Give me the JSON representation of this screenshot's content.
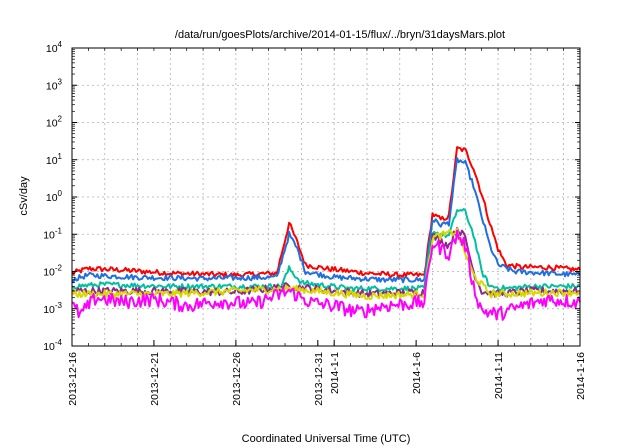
{
  "chart_data": {
    "type": "line",
    "title": "/data/run/goesPlots/archive/2014-01-15/flux/../bryn/31daysMars.plot",
    "xlabel": "Coordinated Universal Time (UTC)",
    "ylabel": "cSv/day",
    "y_scale": "log",
    "ylim": [
      0.0001,
      10000
    ],
    "y_ticks": [
      {
        "value": 0.0001,
        "base": "10",
        "exp": "-4"
      },
      {
        "value": 0.001,
        "base": "10",
        "exp": "-3"
      },
      {
        "value": 0.01,
        "base": "10",
        "exp": "-2"
      },
      {
        "value": 0.1,
        "base": "10",
        "exp": "-1"
      },
      {
        "value": 1,
        "base": "10",
        "exp": "0"
      },
      {
        "value": 10,
        "base": "10",
        "exp": "1"
      },
      {
        "value": 100,
        "base": "10",
        "exp": "2"
      },
      {
        "value": 1000,
        "base": "10",
        "exp": "3"
      },
      {
        "value": 10000,
        "base": "10",
        "exp": "4"
      }
    ],
    "xlim": [
      "2013-12-16",
      "2014-01-16"
    ],
    "x_ticks": [
      {
        "date": "2013-12-16",
        "label": "2013-12-16"
      },
      {
        "date": "2013-12-21",
        "label": "2013-12-21"
      },
      {
        "date": "2013-12-26",
        "label": "2013-12-26"
      },
      {
        "date": "2013-12-31",
        "label": "2013-12-31"
      },
      {
        "date": "2014-01-01",
        "label": "2014-1-1"
      },
      {
        "date": "2014-01-06",
        "label": "2014-1-6"
      },
      {
        "date": "2014-01-11",
        "label": "2014-1-11"
      },
      {
        "date": "2014-01-16",
        "label": "2014-1-16"
      }
    ],
    "grid": true,
    "legend": "none",
    "series": [
      {
        "color": "#ff0000",
        "points": [
          [
            "2013-12-16T00:00",
            0.009
          ],
          [
            "2013-12-17T00:00",
            0.012
          ],
          [
            "2013-12-19T00:00",
            0.011
          ],
          [
            "2013-12-22T00:00",
            0.009
          ],
          [
            "2013-12-26T00:00",
            0.008
          ],
          [
            "2013-12-28T12:00",
            0.009
          ],
          [
            "2013-12-29T06:00",
            0.2
          ],
          [
            "2013-12-29T18:00",
            0.06
          ],
          [
            "2013-12-30T06:00",
            0.015
          ],
          [
            "2013-12-31T12:00",
            0.012
          ],
          [
            "2014-01-03T00:00",
            0.009
          ],
          [
            "2014-01-05T00:00",
            0.008
          ],
          [
            "2014-01-06T12:00",
            0.008
          ],
          [
            "2014-01-07T00:00",
            0.35
          ],
          [
            "2014-01-07T12:00",
            0.25
          ],
          [
            "2014-01-08T00:00",
            0.3
          ],
          [
            "2014-01-08T12:00",
            20
          ],
          [
            "2014-01-09T00:00",
            18
          ],
          [
            "2014-01-09T12:00",
            6
          ],
          [
            "2014-01-10T00:00",
            1.2
          ],
          [
            "2014-01-10T12:00",
            0.2
          ],
          [
            "2014-01-11T00:00",
            0.04
          ],
          [
            "2014-01-11T12:00",
            0.015
          ],
          [
            "2014-01-12T12:00",
            0.013
          ],
          [
            "2014-01-14T00:00",
            0.013
          ],
          [
            "2014-01-16T00:00",
            0.011
          ]
        ]
      },
      {
        "color": "#1f6fe0",
        "points": [
          [
            "2013-12-16T00:00",
            0.006
          ],
          [
            "2013-12-17T00:00",
            0.008
          ],
          [
            "2013-12-20T00:00",
            0.007
          ],
          [
            "2013-12-24T00:00",
            0.0065
          ],
          [
            "2013-12-28T12:00",
            0.007
          ],
          [
            "2013-12-29T06:00",
            0.1
          ],
          [
            "2013-12-29T18:00",
            0.04
          ],
          [
            "2013-12-30T06:00",
            0.01
          ],
          [
            "2014-01-01T00:00",
            0.007
          ],
          [
            "2014-01-04T00:00",
            0.006
          ],
          [
            "2014-01-06T12:00",
            0.006
          ],
          [
            "2014-01-07T00:00",
            0.25
          ],
          [
            "2014-01-07T12:00",
            0.18
          ],
          [
            "2014-01-08T00:00",
            0.2
          ],
          [
            "2014-01-08T12:00",
            10
          ],
          [
            "2014-01-09T00:00",
            8
          ],
          [
            "2014-01-09T12:00",
            2
          ],
          [
            "2014-01-10T00:00",
            0.3
          ],
          [
            "2014-01-10T12:00",
            0.05
          ],
          [
            "2014-01-11T00:00",
            0.015
          ],
          [
            "2014-01-12T00:00",
            0.01
          ],
          [
            "2014-01-14T00:00",
            0.009
          ],
          [
            "2014-01-16T00:00",
            0.008
          ]
        ]
      },
      {
        "color": "#00c0a0",
        "points": [
          [
            "2013-12-16T00:00",
            0.004
          ],
          [
            "2013-12-18T00:00",
            0.0045
          ],
          [
            "2013-12-22T00:00",
            0.004
          ],
          [
            "2013-12-27T00:00",
            0.004
          ],
          [
            "2013-12-28T18:00",
            0.004
          ],
          [
            "2013-12-29T06:00",
            0.012
          ],
          [
            "2013-12-30T00:00",
            0.005
          ],
          [
            "2014-01-02T00:00",
            0.0035
          ],
          [
            "2014-01-06T12:00",
            0.0035
          ],
          [
            "2014-01-07T00:00",
            0.12
          ],
          [
            "2014-01-07T12:00",
            0.1
          ],
          [
            "2014-01-08T00:00",
            0.09
          ],
          [
            "2014-01-08T12:00",
            0.45
          ],
          [
            "2014-01-09T00:00",
            0.4
          ],
          [
            "2014-01-09T12:00",
            0.1
          ],
          [
            "2014-01-10T00:00",
            0.01
          ],
          [
            "2014-01-10T12:00",
            0.004
          ],
          [
            "2014-01-11T12:00",
            0.0035
          ],
          [
            "2014-01-13T00:00",
            0.004
          ],
          [
            "2014-01-16T00:00",
            0.004
          ]
        ]
      },
      {
        "color": "#8a2a8a",
        "points": [
          [
            "2013-12-16T00:00",
            0.003
          ],
          [
            "2013-12-20T00:00",
            0.003
          ],
          [
            "2013-12-26T00:00",
            0.0028
          ],
          [
            "2013-12-29T06:00",
            0.004
          ],
          [
            "2014-01-03T00:00",
            0.0025
          ],
          [
            "2014-01-06T12:00",
            0.0028
          ],
          [
            "2014-01-07T00:00",
            0.09
          ],
          [
            "2014-01-08T00:00",
            0.05
          ],
          [
            "2014-01-08T12:00",
            0.15
          ],
          [
            "2014-01-09T00:00",
            0.08
          ],
          [
            "2014-01-09T12:00",
            0.01
          ],
          [
            "2014-01-10T00:00",
            0.003
          ],
          [
            "2014-01-11T00:00",
            0.0025
          ],
          [
            "2014-01-13T00:00",
            0.003
          ],
          [
            "2014-01-16T00:00",
            0.003
          ]
        ]
      },
      {
        "color": "#d8d800",
        "points": [
          [
            "2013-12-16T00:00",
            0.0025
          ],
          [
            "2013-12-22T00:00",
            0.0025
          ],
          [
            "2013-12-29T06:00",
            0.0035
          ],
          [
            "2014-01-03T00:00",
            0.0022
          ],
          [
            "2014-01-06T12:00",
            0.0025
          ],
          [
            "2014-01-07T00:00",
            0.08
          ],
          [
            "2014-01-08T12:00",
            0.12
          ],
          [
            "2014-01-09T12:00",
            0.008
          ],
          [
            "2014-01-10T12:00",
            0.0025
          ],
          [
            "2014-01-16T00:00",
            0.0028
          ]
        ]
      },
      {
        "color": "#ff00ff",
        "points": [
          [
            "2013-12-16T00:00",
            0.0012
          ],
          [
            "2013-12-16T12:00",
            0.0007
          ],
          [
            "2013-12-17T12:00",
            0.002
          ],
          [
            "2013-12-19T00:00",
            0.0015
          ],
          [
            "2013-12-21T00:00",
            0.0018
          ],
          [
            "2013-12-23T00:00",
            0.0012
          ],
          [
            "2013-12-25T00:00",
            0.0016
          ],
          [
            "2013-12-27T00:00",
            0.0013
          ],
          [
            "2013-12-29T06:00",
            0.003
          ],
          [
            "2013-12-30T12:00",
            0.0015
          ],
          [
            "2014-01-01T00:00",
            0.0012
          ],
          [
            "2014-01-02T12:00",
            0.0008
          ],
          [
            "2014-01-04T00:00",
            0.0012
          ],
          [
            "2014-01-06T12:00",
            0.0015
          ],
          [
            "2014-01-07T00:00",
            0.06
          ],
          [
            "2014-01-08T00:00",
            0.03
          ],
          [
            "2014-01-08T12:00",
            0.1
          ],
          [
            "2014-01-09T00:00",
            0.05
          ],
          [
            "2014-01-09T12:00",
            0.004
          ],
          [
            "2014-01-10T00:00",
            0.0009
          ],
          [
            "2014-01-11T00:00",
            0.0007
          ],
          [
            "2014-01-12T12:00",
            0.0012
          ],
          [
            "2014-01-14T00:00",
            0.0018
          ],
          [
            "2014-01-16T00:00",
            0.0015
          ]
        ]
      }
    ]
  }
}
